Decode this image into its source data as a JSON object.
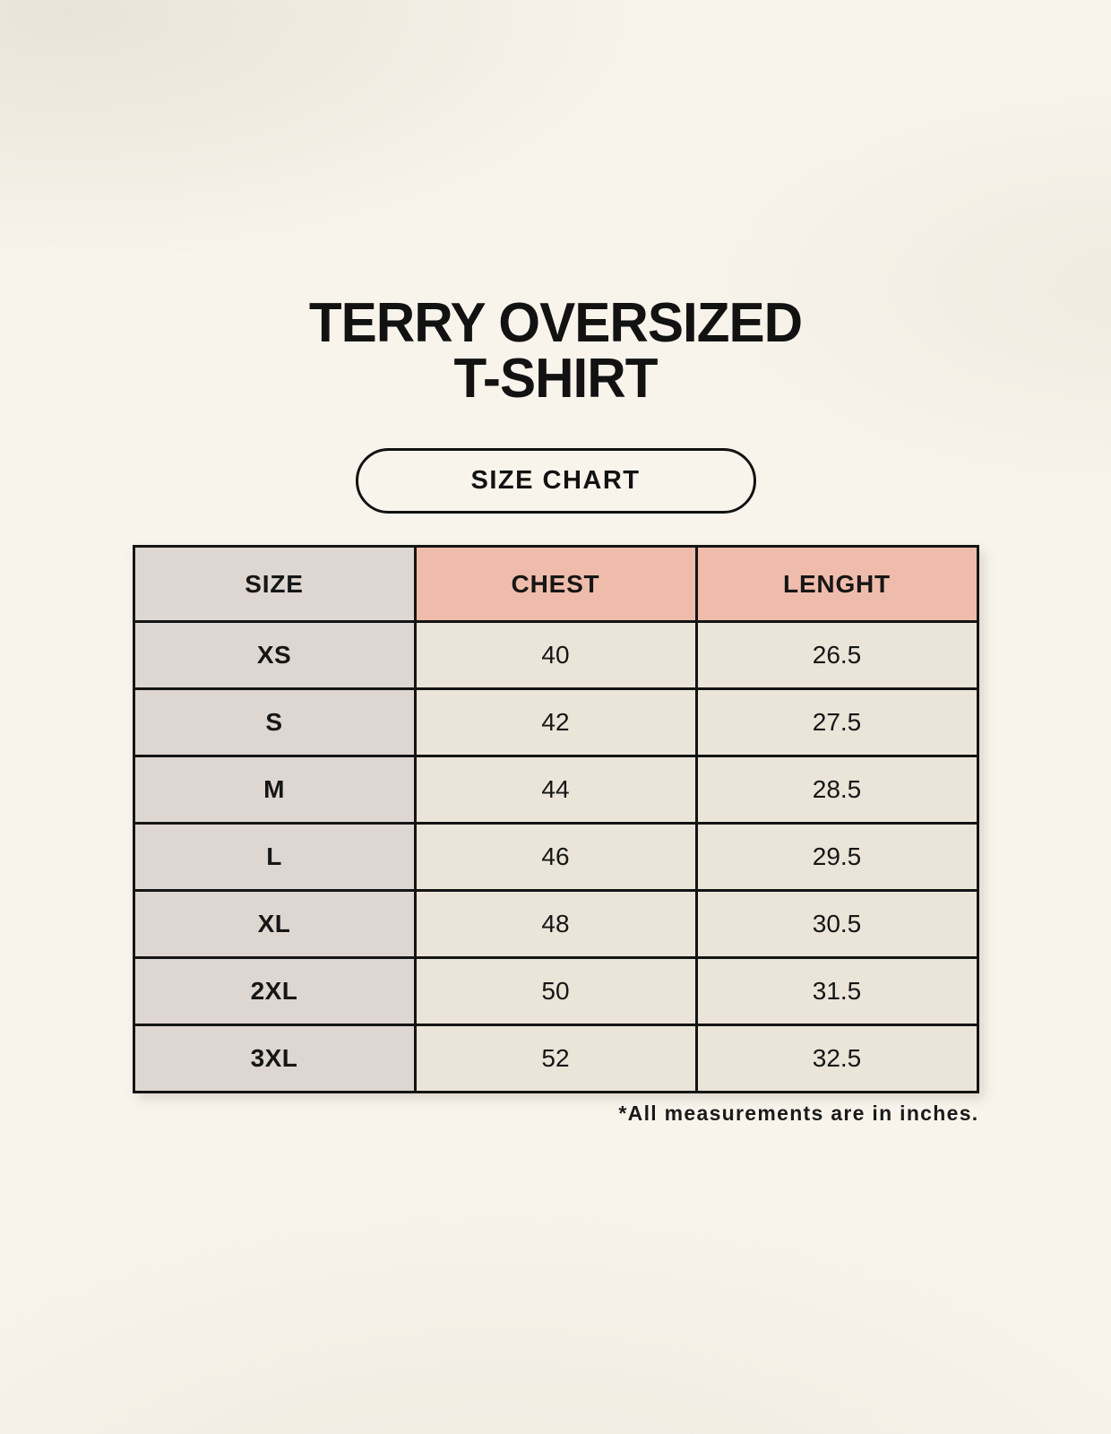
{
  "page": {
    "title_line1": "TERRY OVERSIZED",
    "title_line2": "T-SHIRT",
    "size_chart_badge": "SIZE CHART",
    "footnote": "*All measurements are in inches."
  },
  "chart_data": {
    "type": "table",
    "title": "TERRY OVERSIZED T-SHIRT SIZE CHART",
    "units": "inches",
    "columns": [
      "SIZE",
      "CHEST",
      "LENGHT"
    ],
    "rows": [
      {
        "size": "XS",
        "chest": "40",
        "lenght": "26.5"
      },
      {
        "size": "S",
        "chest": "42",
        "lenght": "27.5"
      },
      {
        "size": "M",
        "chest": "44",
        "lenght": "28.5"
      },
      {
        "size": "L",
        "chest": "46",
        "lenght": "29.5"
      },
      {
        "size": "XL",
        "chest": "48",
        "lenght": "30.5"
      },
      {
        "size": "2XL",
        "chest": "50",
        "lenght": "31.5"
      },
      {
        "size": "3XL",
        "chest": "52",
        "lenght": "32.5"
      }
    ]
  },
  "colors": {
    "background": "#f8f4ec",
    "size_column_bg": "#ddd6d1",
    "header_accent_bg": "#efbcab",
    "cell_bg": "#eae4d9",
    "border": "#141414",
    "text": "#161616"
  }
}
